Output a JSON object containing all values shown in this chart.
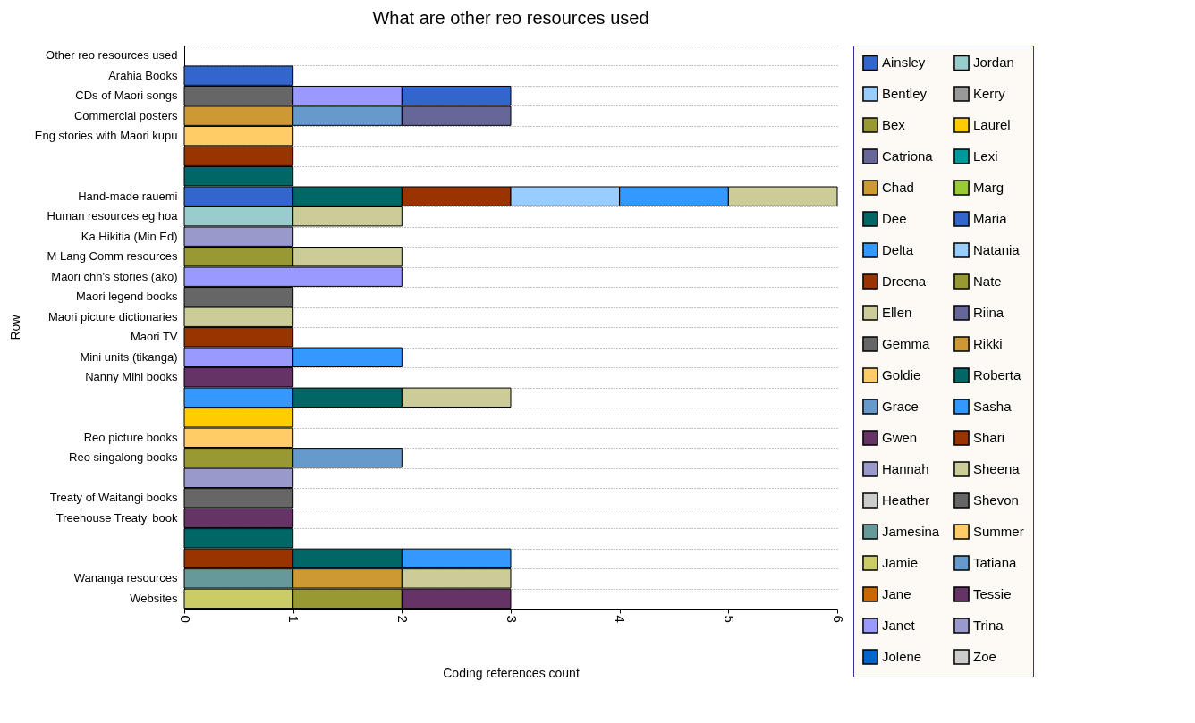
{
  "chart_data": {
    "type": "bar",
    "orientation": "horizontal",
    "stacked": true,
    "title": "What are other reo resources used",
    "xlabel": "Coding references count",
    "ylabel": "Row",
    "categories": [
      "Other reo resources used",
      "Arahia Books",
      "CDs of Maori songs",
      "Commercial posters",
      "Eng stories with Maori kupu",
      null,
      null,
      "Hand-made rauemi",
      "Human resources eg hoa",
      "Ka Hikitia (Min Ed)",
      "M Lang Comm resources",
      "Maori chn's stories (ako)",
      "Maori legend books",
      "Maori picture dictionaries",
      "Maori TV",
      "Mini units (tikanga)",
      "Nanny Mihi books",
      null,
      null,
      "Reo picture books",
      "Reo singalong books",
      null,
      "Treaty of Waitangi books",
      "'Treehouse Treaty' book",
      null,
      null,
      "Wananga resources",
      "Websites"
    ],
    "xlim": [
      0,
      6
    ],
    "xticks": [
      0,
      1,
      2,
      3,
      4,
      5,
      6
    ],
    "grid": "y",
    "legend": "right",
    "series": [
      {
        "name": "Ainsley",
        "color": "#3366cc",
        "values": [
          null,
          1,
          null,
          null,
          null,
          null,
          null,
          1,
          null,
          null,
          null,
          null,
          null,
          null,
          null,
          null,
          null,
          null,
          null,
          null,
          null,
          null,
          null,
          null,
          null,
          null,
          null,
          null
        ]
      },
      {
        "name": "Bentley",
        "color": "#99ccff",
        "values": [
          null,
          null,
          null,
          null,
          null,
          null,
          null,
          null,
          null,
          null,
          null,
          null,
          null,
          null,
          null,
          null,
          null,
          null,
          null,
          null,
          null,
          null,
          null,
          null,
          null,
          null,
          null,
          null
        ]
      },
      {
        "name": "Bex",
        "color": "#999933",
        "values": [
          null,
          null,
          null,
          null,
          null,
          null,
          null,
          null,
          null,
          null,
          1,
          null,
          null,
          null,
          null,
          null,
          null,
          null,
          null,
          null,
          1,
          null,
          null,
          null,
          null,
          null,
          null,
          null
        ]
      },
      {
        "name": "Catriona",
        "color": "#666699",
        "values": [
          null,
          null,
          null,
          null,
          null,
          null,
          null,
          null,
          null,
          null,
          null,
          null,
          null,
          null,
          null,
          null,
          null,
          null,
          null,
          null,
          null,
          null,
          null,
          null,
          null,
          null,
          null,
          null
        ]
      },
      {
        "name": "Chad",
        "color": "#cc9933",
        "values": [
          null,
          null,
          null,
          1,
          null,
          null,
          null,
          null,
          null,
          null,
          null,
          null,
          null,
          null,
          null,
          null,
          null,
          null,
          null,
          null,
          null,
          null,
          null,
          null,
          null,
          null,
          null,
          null
        ]
      },
      {
        "name": "Dee",
        "color": "#006666",
        "values": [
          null,
          null,
          null,
          null,
          null,
          null,
          1,
          1,
          null,
          null,
          null,
          null,
          null,
          null,
          null,
          null,
          null,
          null,
          null,
          null,
          null,
          null,
          null,
          null,
          1,
          null,
          null,
          null
        ]
      },
      {
        "name": "Delta",
        "color": "#3399ff",
        "values": [
          null,
          null,
          null,
          null,
          null,
          null,
          null,
          null,
          null,
          null,
          null,
          null,
          null,
          null,
          null,
          null,
          null,
          1,
          null,
          null,
          null,
          null,
          null,
          null,
          null,
          null,
          null,
          null
        ]
      },
      {
        "name": "Dreena",
        "color": "#993300",
        "values": [
          null,
          null,
          null,
          null,
          null,
          1,
          null,
          1,
          null,
          null,
          null,
          null,
          null,
          null,
          1,
          null,
          null,
          null,
          null,
          null,
          null,
          null,
          null,
          null,
          null,
          1,
          null,
          null
        ]
      },
      {
        "name": "Ellen",
        "color": "#cccc99",
        "values": [
          null,
          null,
          null,
          null,
          null,
          null,
          null,
          null,
          null,
          null,
          1,
          null,
          null,
          1,
          null,
          null,
          null,
          null,
          null,
          null,
          null,
          null,
          null,
          null,
          null,
          null,
          null,
          null
        ]
      },
      {
        "name": "Gemma",
        "color": "#666666",
        "values": [
          null,
          null,
          1,
          null,
          null,
          null,
          null,
          null,
          null,
          null,
          null,
          null,
          1,
          null,
          null,
          null,
          null,
          null,
          null,
          null,
          null,
          null,
          1,
          null,
          null,
          null,
          null,
          null
        ]
      },
      {
        "name": "Goldie",
        "color": "#ffcc66",
        "values": [
          null,
          null,
          null,
          null,
          1,
          null,
          null,
          null,
          null,
          null,
          null,
          null,
          null,
          null,
          null,
          null,
          null,
          null,
          null,
          1,
          null,
          null,
          null,
          null,
          null,
          null,
          null,
          null
        ]
      },
      {
        "name": "Grace",
        "color": "#6699cc",
        "values": [
          null,
          null,
          null,
          1,
          null,
          null,
          null,
          null,
          null,
          null,
          null,
          null,
          null,
          null,
          null,
          null,
          null,
          null,
          null,
          null,
          1,
          null,
          null,
          null,
          null,
          null,
          null,
          null
        ]
      },
      {
        "name": "Gwen",
        "color": "#663366",
        "values": [
          null,
          null,
          null,
          null,
          null,
          null,
          null,
          null,
          null,
          null,
          null,
          null,
          null,
          null,
          null,
          null,
          1,
          null,
          null,
          null,
          null,
          null,
          null,
          1,
          null,
          null,
          null,
          null
        ]
      },
      {
        "name": "Hannah",
        "color": "#9999cc",
        "values": [
          null,
          null,
          null,
          null,
          null,
          null,
          null,
          null,
          null,
          1,
          null,
          null,
          null,
          null,
          null,
          null,
          null,
          null,
          null,
          null,
          null,
          1,
          null,
          null,
          null,
          null,
          null,
          null
        ]
      },
      {
        "name": "Heather",
        "color": "#cccccc",
        "values": [
          null,
          null,
          null,
          null,
          null,
          null,
          null,
          null,
          null,
          null,
          null,
          null,
          null,
          null,
          null,
          null,
          null,
          null,
          null,
          null,
          null,
          null,
          null,
          null,
          null,
          null,
          null,
          null
        ]
      },
      {
        "name": "Jamesina",
        "color": "#669999",
        "values": [
          null,
          null,
          null,
          null,
          null,
          null,
          null,
          null,
          null,
          null,
          null,
          null,
          null,
          null,
          null,
          null,
          null,
          null,
          null,
          null,
          null,
          null,
          null,
          null,
          null,
          null,
          1,
          null
        ]
      },
      {
        "name": "Jamie",
        "color": "#cccc66",
        "values": [
          null,
          null,
          null,
          null,
          null,
          null,
          null,
          null,
          null,
          null,
          null,
          null,
          null,
          null,
          null,
          null,
          null,
          null,
          null,
          null,
          null,
          null,
          null,
          null,
          null,
          null,
          null,
          1
        ]
      },
      {
        "name": "Jane",
        "color": "#cc6600",
        "values": [
          null,
          null,
          null,
          null,
          null,
          null,
          null,
          null,
          null,
          null,
          null,
          null,
          null,
          null,
          null,
          null,
          null,
          null,
          null,
          null,
          null,
          null,
          null,
          null,
          null,
          null,
          null,
          null
        ]
      },
      {
        "name": "Janet",
        "color": "#9999ff",
        "values": [
          null,
          null,
          1,
          null,
          null,
          null,
          null,
          null,
          null,
          null,
          null,
          2,
          null,
          null,
          null,
          1,
          null,
          null,
          null,
          null,
          null,
          null,
          null,
          null,
          null,
          null,
          null,
          null
        ]
      },
      {
        "name": "Jolene",
        "color": "#0066cc",
        "values": [
          null,
          null,
          null,
          null,
          null,
          null,
          null,
          null,
          null,
          null,
          null,
          null,
          null,
          null,
          null,
          null,
          null,
          null,
          null,
          null,
          null,
          null,
          null,
          null,
          null,
          null,
          null,
          null
        ]
      },
      {
        "name": "Jordan",
        "color": "#99cccc",
        "values": [
          null,
          null,
          null,
          null,
          null,
          null,
          null,
          null,
          1,
          null,
          null,
          null,
          null,
          null,
          null,
          null,
          null,
          null,
          null,
          null,
          null,
          null,
          null,
          null,
          null,
          null,
          null,
          null
        ]
      },
      {
        "name": "Kerry",
        "color": "#999999",
        "values": [
          null,
          null,
          null,
          null,
          null,
          null,
          null,
          null,
          null,
          null,
          null,
          null,
          null,
          null,
          null,
          null,
          null,
          null,
          null,
          null,
          null,
          null,
          null,
          null,
          null,
          null,
          null,
          null
        ]
      },
      {
        "name": "Laurel",
        "color": "#ffcc00",
        "values": [
          null,
          null,
          null,
          null,
          null,
          null,
          null,
          null,
          null,
          null,
          null,
          null,
          null,
          null,
          null,
          null,
          null,
          null,
          1,
          null,
          null,
          null,
          null,
          null,
          null,
          null,
          null,
          null
        ]
      },
      {
        "name": "Lexi",
        "color": "#009999",
        "values": [
          null,
          null,
          null,
          null,
          null,
          null,
          null,
          null,
          null,
          null,
          null,
          null,
          null,
          null,
          null,
          null,
          null,
          null,
          null,
          null,
          null,
          null,
          null,
          null,
          null,
          null,
          null,
          null
        ]
      },
      {
        "name": "Marg",
        "color": "#99cc33",
        "values": [
          null,
          null,
          null,
          null,
          null,
          null,
          null,
          null,
          null,
          null,
          null,
          null,
          null,
          null,
          null,
          null,
          null,
          null,
          null,
          null,
          null,
          null,
          null,
          null,
          null,
          null,
          null,
          null
        ]
      },
      {
        "name": "Maria",
        "color": "#3366cc",
        "values": [
          null,
          null,
          1,
          null,
          null,
          null,
          null,
          null,
          null,
          null,
          null,
          null,
          null,
          null,
          null,
          null,
          null,
          null,
          null,
          null,
          null,
          null,
          null,
          null,
          null,
          null,
          null,
          null
        ]
      },
      {
        "name": "Natania",
        "color": "#99ccff",
        "values": [
          null,
          null,
          null,
          null,
          null,
          null,
          null,
          1,
          null,
          null,
          null,
          null,
          null,
          null,
          null,
          null,
          null,
          null,
          null,
          null,
          null,
          null,
          null,
          null,
          null,
          null,
          null,
          null
        ]
      },
      {
        "name": "Nate",
        "color": "#999933",
        "values": [
          null,
          null,
          null,
          null,
          null,
          null,
          null,
          null,
          null,
          null,
          null,
          null,
          null,
          null,
          null,
          null,
          null,
          null,
          null,
          null,
          null,
          null,
          null,
          null,
          null,
          null,
          null,
          1
        ]
      },
      {
        "name": "Riina",
        "color": "#666699",
        "values": [
          null,
          null,
          null,
          1,
          null,
          null,
          null,
          null,
          null,
          null,
          null,
          null,
          null,
          null,
          null,
          null,
          null,
          null,
          null,
          null,
          null,
          null,
          null,
          null,
          null,
          null,
          null,
          null
        ]
      },
      {
        "name": "Rikki",
        "color": "#cc9933",
        "values": [
          null,
          null,
          null,
          null,
          null,
          null,
          null,
          null,
          null,
          null,
          null,
          null,
          null,
          null,
          null,
          null,
          null,
          null,
          null,
          null,
          null,
          null,
          null,
          null,
          null,
          null,
          1,
          null
        ]
      },
      {
        "name": "Roberta",
        "color": "#006666",
        "values": [
          null,
          null,
          null,
          null,
          null,
          null,
          null,
          null,
          null,
          null,
          null,
          null,
          null,
          null,
          null,
          null,
          null,
          1,
          null,
          null,
          null,
          null,
          null,
          null,
          null,
          1,
          null,
          null
        ]
      },
      {
        "name": "Sasha",
        "color": "#3399ff",
        "values": [
          null,
          null,
          null,
          null,
          null,
          null,
          null,
          1,
          null,
          null,
          null,
          null,
          null,
          null,
          null,
          1,
          null,
          null,
          null,
          null,
          null,
          null,
          null,
          null,
          null,
          1,
          null,
          null
        ]
      },
      {
        "name": "Shari",
        "color": "#993300",
        "values": [
          null,
          null,
          null,
          null,
          null,
          null,
          null,
          null,
          null,
          null,
          null,
          null,
          null,
          null,
          null,
          null,
          null,
          null,
          null,
          null,
          null,
          null,
          null,
          null,
          null,
          null,
          null,
          null
        ]
      },
      {
        "name": "Sheena",
        "color": "#cccc99",
        "values": [
          null,
          null,
          null,
          null,
          null,
          null,
          null,
          1,
          1,
          null,
          null,
          null,
          null,
          null,
          null,
          null,
          null,
          1,
          null,
          null,
          null,
          null,
          null,
          null,
          null,
          null,
          1,
          null
        ]
      },
      {
        "name": "Shevon",
        "color": "#666666",
        "values": [
          null,
          null,
          null,
          null,
          null,
          null,
          null,
          null,
          null,
          null,
          null,
          null,
          null,
          null,
          null,
          null,
          null,
          null,
          null,
          null,
          null,
          null,
          null,
          null,
          null,
          null,
          null,
          null
        ]
      },
      {
        "name": "Summer",
        "color": "#ffcc66",
        "values": [
          null,
          null,
          null,
          null,
          null,
          null,
          null,
          null,
          null,
          null,
          null,
          null,
          null,
          null,
          null,
          null,
          null,
          null,
          null,
          null,
          null,
          null,
          null,
          null,
          null,
          null,
          null,
          null
        ]
      },
      {
        "name": "Tatiana",
        "color": "#6699cc",
        "values": [
          null,
          null,
          null,
          null,
          null,
          null,
          null,
          null,
          null,
          null,
          null,
          null,
          null,
          null,
          null,
          null,
          null,
          null,
          null,
          null,
          null,
          null,
          null,
          null,
          null,
          null,
          null,
          null
        ]
      },
      {
        "name": "Tessie",
        "color": "#663366",
        "values": [
          null,
          null,
          null,
          null,
          null,
          null,
          null,
          null,
          null,
          null,
          null,
          null,
          null,
          null,
          null,
          null,
          null,
          null,
          null,
          null,
          null,
          null,
          null,
          null,
          null,
          null,
          null,
          1
        ]
      },
      {
        "name": "Trina",
        "color": "#9999cc",
        "values": [
          null,
          null,
          null,
          null,
          null,
          null,
          null,
          null,
          null,
          null,
          null,
          null,
          null,
          null,
          null,
          null,
          null,
          null,
          null,
          null,
          null,
          null,
          null,
          null,
          null,
          null,
          null,
          null
        ]
      },
      {
        "name": "Zoe",
        "color": "#cccccc",
        "values": [
          null,
          null,
          null,
          null,
          null,
          null,
          null,
          null,
          null,
          null,
          null,
          null,
          null,
          null,
          null,
          null,
          null,
          null,
          null,
          null,
          null,
          null,
          null,
          null,
          null,
          null,
          null,
          null
        ]
      }
    ]
  }
}
